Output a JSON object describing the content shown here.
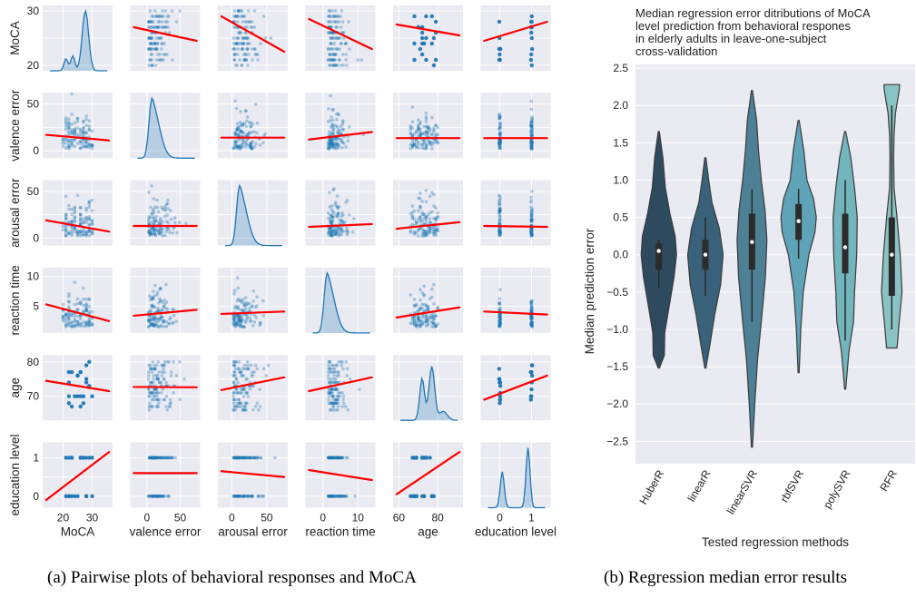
{
  "chart_data": [
    {
      "type": "scatter",
      "kind": "pairplot",
      "caption": "(a) Pairwise plots of behavioral responses and MoCA",
      "variables": [
        "MoCA",
        "valence error",
        "arousal error",
        "reaction time",
        "age",
        "education level"
      ],
      "ranges": [
        [
          13,
          37
        ],
        [
          -25,
          80
        ],
        [
          -20,
          80
        ],
        [
          -5,
          15
        ],
        [
          57,
          93
        ],
        [
          -0.6,
          1.6
        ]
      ],
      "row_ranges": [
        [
          19,
          31
        ],
        [
          -8,
          62
        ],
        [
          -8,
          62
        ],
        [
          0.5,
          11.5
        ],
        [
          63,
          82
        ],
        [
          -0.3,
          1.4
        ]
      ],
      "x_ticks": [
        [
          20,
          30
        ],
        [
          0,
          50
        ],
        [
          0,
          50
        ],
        [
          0,
          10
        ],
        [
          60,
          80
        ],
        [
          0,
          1
        ]
      ],
      "y_ticks": [
        [
          20,
          25,
          30
        ],
        [
          0,
          25,
          50
        ],
        [
          0,
          25,
          50
        ],
        [
          5,
          10
        ],
        [
          70,
          75,
          80
        ],
        [
          0,
          0.5,
          1
        ]
      ],
      "tick_labels": {
        "x": [
          [
            "20",
            "30"
          ],
          [
            "0",
            "50"
          ],
          [
            "0",
            "50"
          ],
          [
            "0",
            "10"
          ],
          [
            "60",
            "80"
          ],
          [
            "0",
            "1"
          ]
        ],
        "y": [
          [
            "20",
            "",
            "30"
          ],
          [
            "0",
            "",
            "50"
          ],
          [
            "0",
            "",
            "50"
          ],
          [
            "5",
            "10"
          ],
          [
            "70",
            "",
            "80"
          ],
          [
            "0",
            "",
            "1"
          ]
        ]
      },
      "regression_lines": {
        "MoCA": {
          "valence error": [
            27,
            24.5
          ],
          "arousal error": [
            29,
            22.5
          ],
          "reaction time": [
            28.5,
            23
          ],
          "age": [
            27.5,
            25.5
          ],
          "education level": [
            24.5,
            28
          ]
        },
        "valence error": {
          "MoCA": [
            17,
            11
          ],
          "arousal error": [
            14,
            14
          ],
          "reaction time": [
            12,
            20
          ],
          "age": [
            13.5,
            13.5
          ],
          "education level": [
            13.5,
            13.5
          ]
        },
        "arousal error": {
          "MoCA": [
            19,
            7
          ],
          "valence error": [
            13,
            13
          ],
          "reaction time": [
            12,
            15
          ],
          "age": [
            10,
            17
          ],
          "education level": [
            13,
            12
          ]
        },
        "reaction time": {
          "MoCA": [
            5.3,
            2.5
          ],
          "valence error": [
            3.4,
            4.4
          ],
          "arousal error": [
            3.7,
            4.1
          ],
          "age": [
            3.1,
            4.8
          ],
          "education level": [
            4.1,
            3.6
          ]
        },
        "age": {
          "MoCA": [
            74.5,
            71.5
          ],
          "valence error": [
            72.7,
            72.6
          ],
          "arousal error": [
            71.8,
            75.5
          ],
          "reaction time": [
            71.5,
            75.5
          ],
          "education level": [
            69,
            76
          ]
        },
        "education level": {
          "MoCA": [
            -0.1,
            1.15
          ],
          "valence error": [
            0.6,
            0.6
          ],
          "arousal error": [
            0.65,
            0.5
          ],
          "reaction time": [
            0.68,
            0.42
          ],
          "age": [
            0.05,
            1.15
          ]
        }
      },
      "axis_ylabels": [
        "MoCA",
        "valence error",
        "arousal error",
        "reaction time",
        "age",
        "education level"
      ],
      "axis_xlabels": [
        "MoCA",
        "valence error",
        "arousal error",
        "reaction time",
        "age",
        "education level"
      ],
      "grid": true,
      "colors": {
        "points": "#1f77b4",
        "regression": "#ff0000",
        "panel_bg": "#eaeaf2"
      }
    },
    {
      "type": "violin",
      "title_lines": [
        "Median regression error ditributions of MoCA",
        "level prediction from behavioral respones",
        "in elderly adults in leave-one-subject",
        "cross-validation"
      ],
      "xlabel": "Tested regression methods",
      "ylabel": "Median prediction error",
      "categories": [
        "HuberR",
        "linearR",
        "linearSVR",
        "rbfSVR",
        "polySVR",
        "RFR"
      ],
      "ylim": [
        -2.8,
        2.55
      ],
      "yticks": [
        -2.5,
        -2.0,
        -1.5,
        -1.0,
        -0.5,
        0.0,
        0.5,
        1.0,
        1.5,
        2.0,
        2.5
      ],
      "ytick_labels": [
        "−2.5",
        "−2.0",
        "−1.5",
        "−1.0",
        "−0.5",
        "0.0",
        "0.5",
        "1.0",
        "1.5",
        "2.0",
        "2.5"
      ],
      "grid": true,
      "series": [
        {
          "min": -1.52,
          "max": 1.65,
          "q1": -0.2,
          "median": 0.05,
          "q3": 0.15,
          "whisker_low": -0.45,
          "whisker_high": 0.2,
          "color": "#2e4a5e",
          "profile": [
            [
              -1.52,
              0.03
            ],
            [
              -1.35,
              0.3
            ],
            [
              -1.05,
              0.32
            ],
            [
              -0.7,
              0.55
            ],
            [
              -0.3,
              0.82
            ],
            [
              0.0,
              0.95
            ],
            [
              0.25,
              0.88
            ],
            [
              0.55,
              0.6
            ],
            [
              0.9,
              0.35
            ],
            [
              1.3,
              0.22
            ],
            [
              1.65,
              0.03
            ]
          ]
        },
        {
          "min": -1.52,
          "max": 1.3,
          "q1": -0.2,
          "median": 0.0,
          "q3": 0.2,
          "whisker_low": -0.55,
          "whisker_high": 0.5,
          "color": "#39627a",
          "profile": [
            [
              -1.52,
              0.03
            ],
            [
              -1.2,
              0.25
            ],
            [
              -0.8,
              0.5
            ],
            [
              -0.4,
              0.82
            ],
            [
              0.0,
              0.95
            ],
            [
              0.35,
              0.75
            ],
            [
              0.7,
              0.35
            ],
            [
              1.0,
              0.18
            ],
            [
              1.3,
              0.03
            ]
          ]
        },
        {
          "min": -2.58,
          "max": 2.2,
          "q1": -0.2,
          "median": 0.17,
          "q3": 0.55,
          "whisker_low": -0.9,
          "whisker_high": 0.88,
          "color": "#4d7f95",
          "profile": [
            [
              -2.58,
              0.03
            ],
            [
              -2.0,
              0.15
            ],
            [
              -1.4,
              0.3
            ],
            [
              -0.9,
              0.5
            ],
            [
              -0.3,
              0.72
            ],
            [
              0.2,
              0.8
            ],
            [
              0.6,
              0.7
            ],
            [
              1.0,
              0.5
            ],
            [
              1.4,
              0.35
            ],
            [
              1.8,
              0.25
            ],
            [
              2.2,
              0.03
            ]
          ]
        },
        {
          "min": -1.58,
          "max": 1.8,
          "q1": 0.2,
          "median": 0.45,
          "q3": 0.68,
          "whisker_low": -0.05,
          "whisker_high": 0.88,
          "color": "#5fa3b8",
          "profile": [
            [
              -1.58,
              0.03
            ],
            [
              -1.0,
              0.12
            ],
            [
              -0.5,
              0.25
            ],
            [
              0.0,
              0.55
            ],
            [
              0.3,
              0.88
            ],
            [
              0.5,
              0.95
            ],
            [
              0.75,
              0.8
            ],
            [
              1.0,
              0.45
            ],
            [
              1.4,
              0.28
            ],
            [
              1.8,
              0.03
            ]
          ]
        },
        {
          "min": -1.8,
          "max": 1.65,
          "q1": -0.25,
          "median": 0.1,
          "q3": 0.55,
          "whisker_low": -1.15,
          "whisker_high": 1.0,
          "color": "#73b5bd",
          "profile": [
            [
              -1.8,
              0.03
            ],
            [
              -1.3,
              0.2
            ],
            [
              -0.9,
              0.45
            ],
            [
              -0.5,
              0.5
            ],
            [
              0.0,
              0.62
            ],
            [
              0.5,
              0.65
            ],
            [
              0.9,
              0.5
            ],
            [
              1.3,
              0.3
            ],
            [
              1.65,
              0.03
            ]
          ]
        },
        {
          "min": -1.25,
          "max": 2.28,
          "q1": -0.55,
          "median": 0.0,
          "q3": 0.5,
          "whisker_low": -1.0,
          "whisker_high": 2.0,
          "color": "#89c3c4",
          "profile": [
            [
              -1.25,
              0.28
            ],
            [
              -0.9,
              0.4
            ],
            [
              -0.5,
              0.55
            ],
            [
              0.0,
              0.45
            ],
            [
              0.5,
              0.28
            ],
            [
              0.9,
              0.12
            ],
            [
              1.3,
              0.1
            ],
            [
              1.6,
              0.12
            ],
            [
              1.9,
              0.2
            ],
            [
              2.2,
              0.4
            ],
            [
              2.28,
              0.42
            ]
          ]
        }
      ]
    }
  ],
  "captions": {
    "a": "(a) Pairwise plots of behavioral responses and MoCA",
    "b": "(b) Regression median error results"
  }
}
